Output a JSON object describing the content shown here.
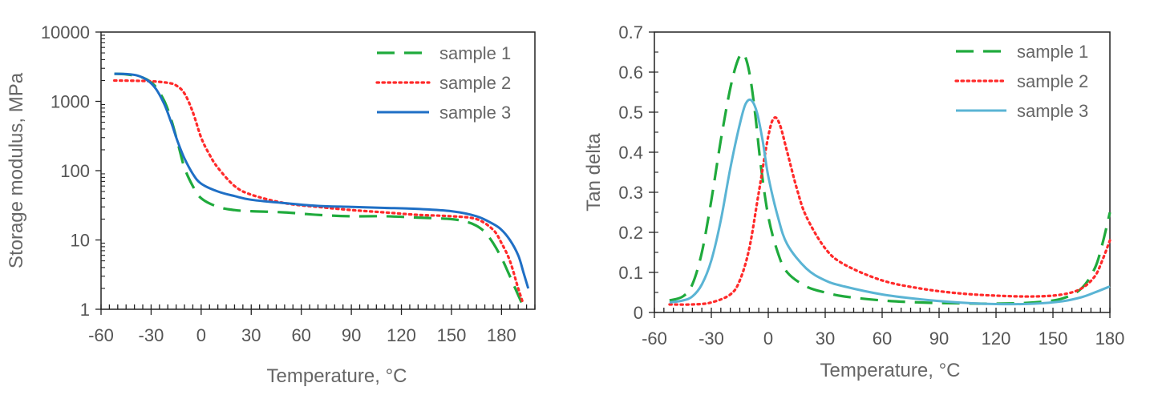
{
  "chart_data": [
    {
      "type": "line",
      "xlabel": "Temperature, °C",
      "ylabel": "Storage modulus, MPa",
      "yscale": "log",
      "xlim": [
        -60,
        200
      ],
      "ylim": [
        1,
        10000
      ],
      "xticks": [
        "-60",
        "-30",
        "0",
        "30",
        "60",
        "90",
        "120",
        "150",
        "180"
      ],
      "xtick_values": [
        -60,
        -30,
        0,
        30,
        60,
        90,
        120,
        150,
        180
      ],
      "yticks": [
        "1",
        "10",
        "100",
        "1000",
        "10000"
      ],
      "ytick_values": [
        1,
        10,
        100,
        1000,
        10000
      ],
      "grid": false,
      "legend_position": "top-right",
      "series": [
        {
          "name": "sample 1",
          "style": "dashed",
          "color": "#1faa3c",
          "x": [
            -52,
            -45,
            -35,
            -28,
            -22,
            -18,
            -14,
            -10,
            -5,
            0,
            10,
            20,
            30,
            50,
            70,
            90,
            110,
            130,
            150,
            160,
            165,
            170,
            175,
            180,
            185,
            190,
            193
          ],
          "y": [
            2500,
            2450,
            2200,
            1700,
            1000,
            550,
            250,
            110,
            60,
            40,
            30,
            27,
            26,
            25,
            23,
            22,
            22,
            21,
            20,
            18,
            16,
            13,
            9,
            5.5,
            3,
            1.6,
            1.1
          ]
        },
        {
          "name": "sample 2",
          "style": "dotted",
          "color": "#ff2a2a",
          "x": [
            -52,
            -40,
            -30,
            -20,
            -15,
            -10,
            -5,
            0,
            5,
            10,
            20,
            30,
            50,
            70,
            90,
            110,
            130,
            150,
            165,
            175,
            180,
            185,
            190,
            193
          ],
          "y": [
            2000,
            1980,
            1950,
            1850,
            1700,
            1300,
            700,
            300,
            170,
            110,
            60,
            45,
            34,
            30,
            27,
            25,
            23,
            22,
            20,
            14,
            9,
            5,
            2,
            1.2
          ]
        },
        {
          "name": "sample 3",
          "style": "solid",
          "color": "#1f6fc5",
          "x": [
            -52,
            -45,
            -38,
            -32,
            -27,
            -22,
            -18,
            -14,
            -10,
            -5,
            0,
            10,
            20,
            30,
            50,
            70,
            90,
            110,
            130,
            150,
            165,
            175,
            180,
            185,
            190,
            193,
            196
          ],
          "y": [
            2500,
            2480,
            2350,
            2000,
            1500,
            900,
            500,
            260,
            150,
            90,
            65,
            50,
            43,
            38,
            34,
            31,
            30,
            29,
            28,
            26,
            22,
            17,
            14,
            10,
            6,
            3.5,
            2
          ]
        }
      ]
    },
    {
      "type": "line",
      "xlabel": "Temperature, °C",
      "ylabel": "Tan delta",
      "yscale": "linear",
      "xlim": [
        -60,
        180
      ],
      "ylim": [
        0,
        0.7
      ],
      "xticks": [
        "-60",
        "-30",
        "0",
        "30",
        "60",
        "90",
        "120",
        "150",
        "180"
      ],
      "xtick_values": [
        -60,
        -30,
        0,
        30,
        60,
        90,
        120,
        150,
        180
      ],
      "yticks": [
        "0",
        "0.1",
        "0.2",
        "0.3",
        "0.4",
        "0.5",
        "0.6",
        "0.7"
      ],
      "ytick_values": [
        0,
        0.1,
        0.2,
        0.3,
        0.4,
        0.5,
        0.6,
        0.7
      ],
      "grid": false,
      "legend_position": "top-right",
      "series": [
        {
          "name": "sample 1",
          "style": "dashed",
          "color": "#1faa3c",
          "x": [
            -52,
            -45,
            -40,
            -35,
            -30,
            -25,
            -20,
            -16,
            -13,
            -10,
            -7,
            -4,
            0,
            5,
            10,
            20,
            30,
            40,
            60,
            80,
            100,
            120,
            140,
            155,
            165,
            172,
            176,
            180
          ],
          "y": [
            0.03,
            0.04,
            0.07,
            0.15,
            0.28,
            0.43,
            0.56,
            0.63,
            0.645,
            0.6,
            0.5,
            0.37,
            0.24,
            0.15,
            0.1,
            0.065,
            0.05,
            0.04,
            0.03,
            0.025,
            0.023,
            0.022,
            0.025,
            0.035,
            0.06,
            0.11,
            0.17,
            0.25
          ]
        },
        {
          "name": "sample 2",
          "style": "dotted",
          "color": "#ff2a2a",
          "x": [
            -52,
            -40,
            -30,
            -20,
            -15,
            -10,
            -5,
            0,
            3,
            6,
            10,
            15,
            20,
            30,
            40,
            60,
            80,
            100,
            120,
            140,
            155,
            165,
            172,
            176,
            180
          ],
          "y": [
            0.02,
            0.02,
            0.025,
            0.045,
            0.08,
            0.16,
            0.3,
            0.44,
            0.485,
            0.47,
            0.4,
            0.31,
            0.24,
            0.16,
            0.12,
            0.08,
            0.06,
            0.048,
            0.042,
            0.04,
            0.045,
            0.06,
            0.09,
            0.13,
            0.18
          ]
        },
        {
          "name": "sample 3",
          "style": "solid",
          "color": "#5ab4d4",
          "x": [
            -52,
            -45,
            -40,
            -35,
            -30,
            -25,
            -20,
            -15,
            -12,
            -9,
            -6,
            -3,
            0,
            5,
            10,
            20,
            30,
            40,
            60,
            80,
            100,
            120,
            140,
            155,
            165,
            172,
            180
          ],
          "y": [
            0.025,
            0.03,
            0.04,
            0.07,
            0.13,
            0.23,
            0.36,
            0.47,
            0.52,
            0.53,
            0.5,
            0.43,
            0.34,
            0.24,
            0.17,
            0.11,
            0.08,
            0.065,
            0.045,
            0.033,
            0.025,
            0.021,
            0.022,
            0.028,
            0.038,
            0.05,
            0.065
          ]
        }
      ]
    }
  ]
}
